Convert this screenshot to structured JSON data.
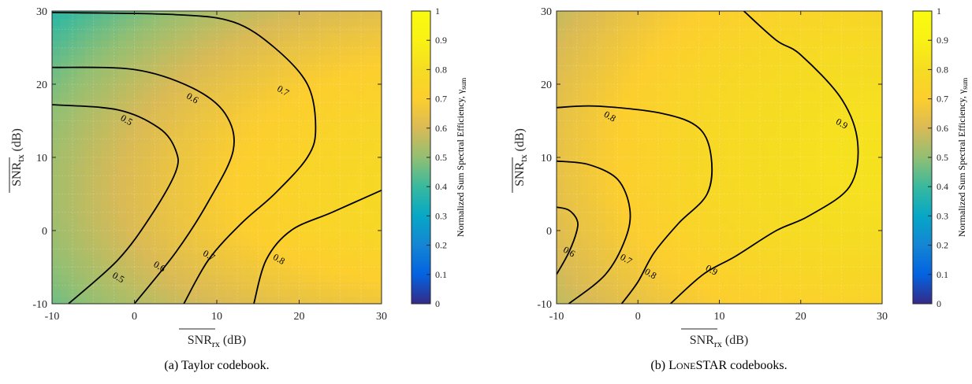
{
  "chart_data": [
    {
      "type": "heatmap",
      "caption": "(a) Taylor codebook.",
      "x_tick_labels": [
        "-10",
        "0",
        "10",
        "20",
        "30"
      ],
      "y_tick_labels": [
        "-10",
        "0",
        "10",
        "20",
        "30"
      ],
      "x_ticks": [
        -10,
        0,
        10,
        20,
        30
      ],
      "y_ticks": [
        -10,
        0,
        10,
        20,
        30
      ],
      "xlim": [
        -10,
        30
      ],
      "ylim": [
        -10,
        30
      ],
      "xlabel": {
        "base": "SNR",
        "sub": "rx",
        "unit": "(dB)"
      },
      "ylabel": {
        "base": "SNR",
        "sub": "tx",
        "unit": "(dB)"
      },
      "colorbar": {
        "label": "Normalized Sum Spectral Efficiency, γ",
        "label_sub": "sum",
        "range": [
          0,
          1
        ],
        "tick_labels": [
          "0",
          "0.1",
          "0.2",
          "0.3",
          "0.4",
          "0.5",
          "0.6",
          "0.7",
          "0.8",
          "0.9",
          "1"
        ]
      },
      "grid": true,
      "model": {
        "a": 0.52,
        "bx": 0.0102,
        "cx": -0.0001,
        "by": 0.0004,
        "cy": -0.00025,
        "cxy": -0.00012,
        "shift_x": 10,
        "shift_y": 5
      },
      "contours": [
        {
          "level": 0.5,
          "label": "0.5",
          "points": [
            [
              -8,
              -10
            ],
            [
              -2,
              -4
            ],
            [
              2,
              2
            ],
            [
              5,
              8
            ],
            [
              5,
              11
            ],
            [
              3,
              14
            ],
            [
              -2,
              16.5
            ],
            [
              -10,
              17.2
            ]
          ]
        },
        {
          "level": 0.6,
          "label": "0.6",
          "points": [
            [
              0,
              -10
            ],
            [
              5,
              -3
            ],
            [
              9,
              4
            ],
            [
              12,
              11
            ],
            [
              11,
              16
            ],
            [
              7,
              19.5
            ],
            [
              0,
              22
            ],
            [
              -10,
              22.3
            ]
          ]
        },
        {
          "level": 0.7,
          "label": "0.7",
          "points": [
            [
              6,
              -10
            ],
            [
              9,
              -4
            ],
            [
              13,
              1
            ],
            [
              17,
              5
            ],
            [
              21,
              10
            ],
            [
              22,
              14
            ],
            [
              21,
              20
            ],
            [
              17,
              25
            ],
            [
              12,
              28.5
            ],
            [
              5,
              29.5
            ],
            [
              -10,
              29.8
            ]
          ]
        },
        {
          "level": 0.8,
          "label": "0.8",
          "points": [
            [
              14.5,
              -10
            ],
            [
              16,
              -4
            ],
            [
              19,
              0
            ],
            [
              24,
              2.5
            ],
            [
              30,
              5.5
            ]
          ]
        }
      ],
      "contour_labels": [
        {
          "text": "0.5",
          "x": -2,
          "y": -6.5
        },
        {
          "text": "0.6",
          "x": 3,
          "y": -5
        },
        {
          "text": "0.7",
          "x": 9,
          "y": -3.5
        },
        {
          "text": "0.8",
          "x": 17.5,
          "y": -4
        },
        {
          "text": "0.5",
          "x": -1,
          "y": 15
        },
        {
          "text": "0.6",
          "x": 7,
          "y": 18
        },
        {
          "text": "0.7",
          "x": 18,
          "y": 19
        }
      ]
    },
    {
      "type": "heatmap",
      "caption_prefix": "(b) L",
      "caption_sc1": "ONE",
      "caption_mid": "STAR",
      "caption_suffix": " codebooks.",
      "x_tick_labels": [
        "-10",
        "0",
        "10",
        "20",
        "30"
      ],
      "y_tick_labels": [
        "-10",
        "0",
        "10",
        "20",
        "30"
      ],
      "x_ticks": [
        -10,
        0,
        10,
        20,
        30
      ],
      "y_ticks": [
        -10,
        0,
        10,
        20,
        30
      ],
      "xlim": [
        -10,
        30
      ],
      "ylim": [
        -10,
        30
      ],
      "xlabel": {
        "base": "SNR",
        "sub": "rx",
        "unit": "(dB)"
      },
      "ylabel": {
        "base": "SNR",
        "sub": "tx",
        "unit": "(dB)"
      },
      "colorbar": {
        "label": "Normalized Sum Spectral Efficiency, γ",
        "label_sub": "sum",
        "range": [
          0,
          1
        ],
        "tick_labels": [
          "0",
          "0.1",
          "0.2",
          "0.3",
          "0.4",
          "0.5",
          "0.6",
          "0.7",
          "0.8",
          "0.9",
          "1"
        ]
      },
      "grid": true,
      "model": {
        "a": 0.62,
        "bx": 0.0095,
        "cx": -0.00012,
        "by": 0.002,
        "cy": -0.00018,
        "cxy": -5e-05,
        "shift_x": 10,
        "shift_y": 5
      },
      "contours": [
        {
          "level": 0.6,
          "label": "0.6",
          "points": [
            [
              -10,
              -6
            ],
            [
              -8.5,
              -3
            ],
            [
              -7.5,
              0
            ],
            [
              -7.5,
              1.5
            ],
            [
              -8.5,
              2.8
            ],
            [
              -10,
              3.2
            ]
          ]
        },
        {
          "level": 0.7,
          "label": "0.7",
          "points": [
            [
              -8.5,
              -10
            ],
            [
              -4,
              -6
            ],
            [
              -1.5,
              -1
            ],
            [
              -1,
              3
            ],
            [
              -2.5,
              7
            ],
            [
              -6,
              9
            ],
            [
              -10,
              9.5
            ]
          ]
        },
        {
          "level": 0.8,
          "label": "0.8",
          "points": [
            [
              -2,
              -10
            ],
            [
              0,
              -7
            ],
            [
              2,
              -3
            ],
            [
              5,
              1
            ],
            [
              8.5,
              5
            ],
            [
              9,
              10
            ],
            [
              7.5,
              14
            ],
            [
              3,
              16
            ],
            [
              -5,
              17
            ],
            [
              -10,
              16.8
            ]
          ]
        },
        {
          "level": 0.9,
          "label": "0.9",
          "points": [
            [
              4,
              -10
            ],
            [
              8,
              -6
            ],
            [
              12,
              -3.5
            ],
            [
              17,
              0
            ],
            [
              21,
              2
            ],
            [
              26,
              6
            ],
            [
              27,
              12
            ],
            [
              25,
              18
            ],
            [
              20,
              24
            ],
            [
              17,
              26
            ],
            [
              13,
              30
            ]
          ]
        }
      ],
      "contour_labels": [
        {
          "text": "0.6",
          "x": -8.5,
          "y": -3
        },
        {
          "text": "0.7",
          "x": -1.5,
          "y": -4
        },
        {
          "text": "0.8",
          "x": 1.5,
          "y": -6
        },
        {
          "text": "0.9",
          "x": 9,
          "y": -5.5
        },
        {
          "text": "0.8",
          "x": -3.5,
          "y": 15.5
        },
        {
          "text": "0.9",
          "x": 25,
          "y": 14.5
        }
      ]
    }
  ]
}
